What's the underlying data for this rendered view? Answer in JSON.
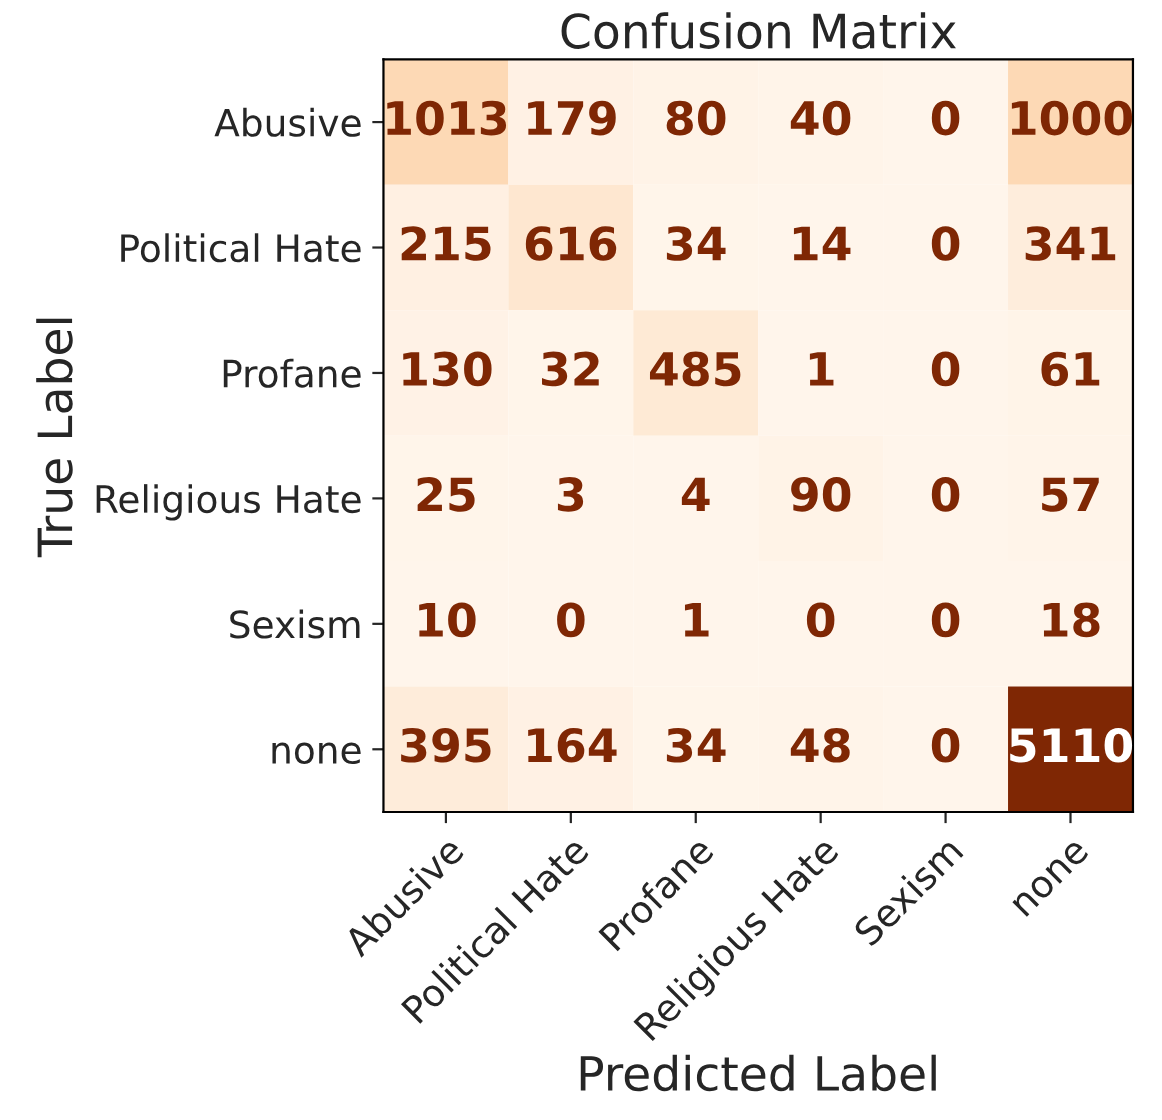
{
  "chart_data": {
    "type": "heatmap",
    "title": "Confusion Matrix",
    "xlabel": "Predicted Label",
    "ylabel": "True Label",
    "categories": [
      "Abusive",
      "Political Hate",
      "Profane",
      "Religious Hate",
      "Sexism",
      "none"
    ],
    "y_categories": [
      "Abusive",
      "Political Hate",
      "Profane",
      "Religious Hate",
      "Sexism",
      "none"
    ],
    "cells": [
      [
        1013,
        179,
        80,
        40,
        0,
        1000
      ],
      [
        215,
        616,
        34,
        14,
        0,
        341
      ],
      [
        130,
        32,
        485,
        1,
        0,
        61
      ],
      [
        25,
        3,
        4,
        90,
        0,
        57
      ],
      [
        10,
        0,
        1,
        0,
        0,
        18
      ],
      [
        395,
        164,
        34,
        48,
        0,
        5110
      ]
    ],
    "data_labels": true
  }
}
